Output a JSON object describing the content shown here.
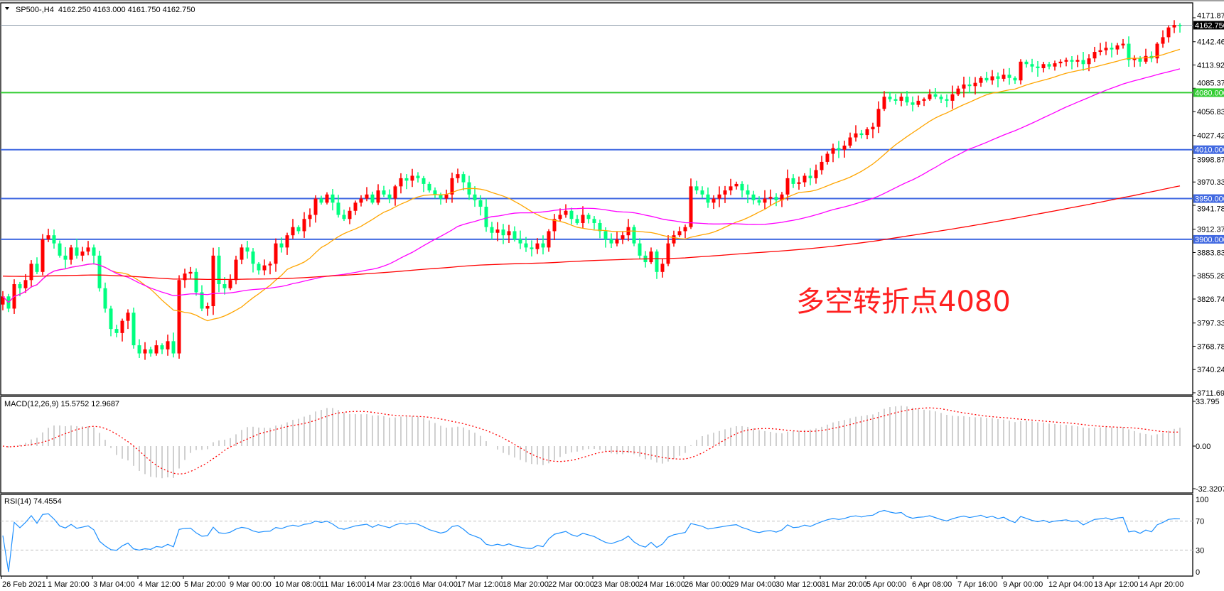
{
  "header": {
    "symbol": "SP500-,H4",
    "ohlc": "4162.250 4163.000 4161.750 4162.750"
  },
  "annotation": "多空转折点4080",
  "colors": {
    "bull": "#ff0000",
    "bear": "#00ff80",
    "ma_fast": "#ffa500",
    "ma_mid": "#ff00ff",
    "ma_slow": "#ff0000",
    "support_line": "#4169e1",
    "pivot_line": "#32cd32",
    "macd_hist": "#c0c0c0",
    "macd_signal": "#ff0000",
    "rsi": "#1e90ff"
  },
  "chart_data": [
    {
      "type": "candlestick",
      "symbol": "SP500-",
      "timeframe": "H4",
      "price_ticks": [
        "4171.875",
        "4142.465",
        "4113.920",
        "4085.375",
        "4056.830",
        "4027.420",
        "3998.875",
        "3970.330",
        "3941.785",
        "3912.375",
        "3883.830",
        "3855.285",
        "3826.740",
        "3797.330",
        "3768.785",
        "3740.240",
        "3711.695"
      ],
      "ylim": [
        3711.695,
        4171.875
      ],
      "current_price": {
        "value": 4162.75,
        "label": "4162.750"
      },
      "horizontal_lines": [
        {
          "value": 4080,
          "label": "4080.000",
          "color": "#32cd32"
        },
        {
          "value": 4010,
          "label": "4010.000",
          "color": "#4169e1"
        },
        {
          "value": 3950,
          "label": "3950.000",
          "color": "#4169e1"
        },
        {
          "value": 3900,
          "label": "3900.000",
          "color": "#4169e1"
        }
      ],
      "time_labels": [
        "26 Feb 2021",
        "1 Mar 20:00",
        "3 Mar 04:00",
        "4 Mar 12:00",
        "5 Mar 20:00",
        "9 Mar 00:00",
        "10 Mar 08:00",
        "11 Mar 16:00",
        "14 Mar 23:00",
        "16 Mar 04:00",
        "17 Mar 12:00",
        "18 Mar 20:00",
        "22 Mar 00:00",
        "23 Mar 08:00",
        "24 Mar 16:00",
        "26 Mar 00:00",
        "29 Mar 04:00",
        "30 Mar 12:00",
        "31 Mar 20:00",
        "5 Apr 00:00",
        "6 Apr 08:00",
        "7 Apr 16:00",
        "9 Apr 00:00",
        "12 Apr 04:00",
        "13 Apr 12:00",
        "14 Apr 20:00"
      ],
      "closes": [
        3830,
        3815,
        3845,
        3840,
        3850,
        3870,
        3860,
        3900,
        3905,
        3895,
        3880,
        3875,
        3890,
        3880,
        3885,
        3890,
        3880,
        3840,
        3815,
        3790,
        3785,
        3800,
        3810,
        3770,
        3760,
        3765,
        3760,
        3770,
        3765,
        3775,
        3760,
        3850,
        3858,
        3860,
        3835,
        3815,
        3818,
        3880,
        3845,
        3840,
        3850,
        3875,
        3890,
        3885,
        3870,
        3862,
        3868,
        3870,
        3895,
        3890,
        3905,
        3915,
        3910,
        3925,
        3930,
        3950,
        3945,
        3955,
        3945,
        3930,
        3925,
        3935,
        3945,
        3950,
        3955,
        3945,
        3960,
        3955,
        3950,
        3965,
        3975,
        3972,
        3978,
        3975,
        3968,
        3960,
        3955,
        3950,
        3955,
        3975,
        3980,
        3970,
        3955,
        3948,
        3940,
        3915,
        3908,
        3912,
        3905,
        3910,
        3900,
        3895,
        3890,
        3888,
        3895,
        3890,
        3910,
        3925,
        3930,
        3935,
        3925,
        3920,
        3930,
        3925,
        3920,
        3910,
        3900,
        3895,
        3900,
        3905,
        3915,
        3895,
        3880,
        3872,
        3885,
        3860,
        3870,
        3895,
        3905,
        3910,
        3915,
        3965,
        3960,
        3955,
        3945,
        3950,
        3955,
        3960,
        3965,
        3968,
        3960,
        3955,
        3948,
        3945,
        3950,
        3952,
        3948,
        3955,
        3975,
        3968,
        3970,
        3978,
        3975,
        3985,
        3995,
        4005,
        4012,
        4010,
        4015,
        4025,
        4030,
        4028,
        4035,
        4038,
        4060,
        4075,
        4072,
        4070,
        4075,
        4068,
        4065,
        4070,
        4072,
        4078,
        4075,
        4072,
        4070,
        4078,
        4085,
        4090,
        4088,
        4092,
        4098,
        4095,
        4100,
        4097,
        4102,
        4098,
        4095,
        4118,
        4115,
        4112,
        4110,
        4115,
        4112,
        4116,
        4118,
        4120,
        4118,
        4120,
        4115,
        4122,
        4130,
        4132,
        4135,
        4133,
        4138,
        4140,
        4120,
        4122,
        4118,
        4125,
        4122,
        4140,
        4148,
        4160,
        4163,
        4162.75
      ],
      "moving_averages": [
        {
          "color": "#ffa500"
        },
        {
          "color": "#ff00ff"
        },
        {
          "color": "#ff0000"
        }
      ]
    },
    {
      "type": "bar+line",
      "title": "MACD(12,26,9) 15.5752 12.9687",
      "ticks": [
        "33.795",
        "0.00",
        "-32.3207"
      ],
      "ylim": [
        -32.3207,
        33.795
      ]
    },
    {
      "type": "line",
      "title": "RSI(14) 74.4554",
      "ticks": [
        "100",
        "70",
        "30",
        "0"
      ],
      "levels": [
        70,
        30
      ],
      "ylim": [
        0,
        100
      ]
    }
  ]
}
